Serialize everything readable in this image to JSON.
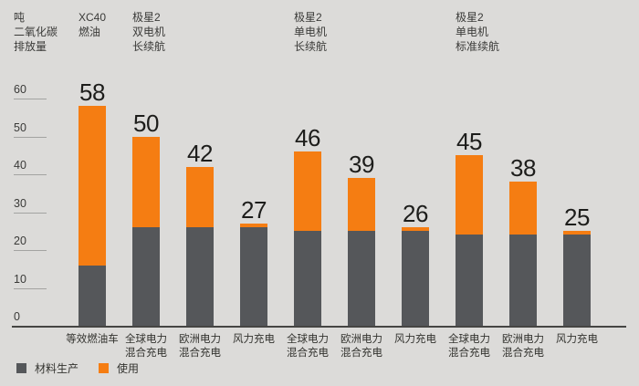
{
  "chart_data": {
    "type": "bar",
    "stacked": true,
    "title": "",
    "ylabel_lines": [
      "吨",
      "二氧化碳",
      "排放量"
    ],
    "ylim": [
      0,
      60
    ],
    "yticks": [
      0,
      10,
      20,
      30,
      40,
      50,
      60
    ],
    "grid": false,
    "legend_position": "bottom-left",
    "categories": [
      [
        "等效燃油车"
      ],
      [
        "全球电力",
        "混合充电"
      ],
      [
        "欧洲电力",
        "混合充电"
      ],
      [
        "风力充电"
      ],
      [
        "全球电力",
        "混合充电"
      ],
      [
        "欧洲电力",
        "混合充电"
      ],
      [
        "风力充电"
      ],
      [
        "全球电力",
        "混合充电"
      ],
      [
        "欧洲电力",
        "混合充电"
      ],
      [
        "风力充电"
      ]
    ],
    "series": [
      {
        "name": "材料生产",
        "color": "#55575A",
        "values": [
          16,
          26,
          26,
          26,
          25,
          25,
          25,
          24,
          24,
          24
        ]
      },
      {
        "name": "使用",
        "color": "#F57D12",
        "values": [
          42,
          24,
          16,
          1,
          21,
          14,
          1,
          21,
          14,
          1
        ]
      }
    ],
    "totals": [
      58,
      50,
      42,
      27,
      46,
      39,
      26,
      45,
      38,
      25
    ],
    "groups": [
      {
        "lines": [
          "XC40",
          "燃油"
        ],
        "bar_index": 0
      },
      {
        "lines": [
          "极星2",
          "双电机",
          "长续航"
        ],
        "bar_index": 1
      },
      {
        "lines": [
          "极星2",
          "单电机",
          "长续航"
        ],
        "bar_index": 4
      },
      {
        "lines": [
          "极星2",
          "单电机",
          "标准续航"
        ],
        "bar_index": 7
      }
    ],
    "legend": [
      {
        "label": "材料生产",
        "color": "#55575A"
      },
      {
        "label": "使用",
        "color": "#F57D12"
      }
    ]
  },
  "colors": {
    "background": "#DCDBD9",
    "axis_line": "#454543",
    "tick_line": "#A3A3A1",
    "value_text": "#1D1D1B",
    "label_text": "#33332F"
  }
}
